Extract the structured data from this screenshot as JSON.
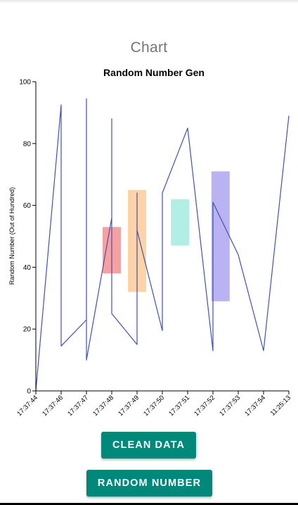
{
  "page": {
    "title": "Chart"
  },
  "buttons": {
    "clean_label": "CLEAN DATA",
    "random_label": "RANDOM NUMBER"
  },
  "chart_data": {
    "type": "line",
    "title": "Random Number Gen",
    "xlabel": "",
    "ylabel": "Random Number (Out of Hundred)",
    "ylim": [
      0,
      100
    ],
    "yticks": [
      0,
      20,
      40,
      60,
      80,
      100
    ],
    "categories": [
      "17:37:44",
      "17:37:46",
      "17:37:47",
      "17:37:48",
      "17:37:49",
      "17:37:50",
      "17:37:51",
      "17:37:52",
      "17:37:53",
      "17:37:54",
      "11:25:13"
    ],
    "line_color": "#3f51b5",
    "line_points": [
      {
        "x": 0,
        "y": 0
      },
      {
        "x": 1,
        "y": 92.5
      },
      {
        "x": 1,
        "y": 14.5
      },
      {
        "x": 2,
        "y": 23
      },
      {
        "x": 2,
        "y": 94.5
      },
      {
        "x": 2,
        "y": 10
      },
      {
        "x": 3,
        "y": 56
      },
      {
        "x": 3,
        "y": 88
      },
      {
        "x": 3,
        "y": 25
      },
      {
        "x": 4,
        "y": 15
      },
      {
        "x": 4,
        "y": 64
      },
      {
        "x": 4,
        "y": 52
      },
      {
        "x": 5,
        "y": 19.5
      },
      {
        "x": 5,
        "y": 64
      },
      {
        "x": 6,
        "y": 85
      },
      {
        "x": 7,
        "y": 13
      },
      {
        "x": 7,
        "y": 61
      },
      {
        "x": 8,
        "y": 44
      },
      {
        "x": 9,
        "y": 13
      },
      {
        "x": 10,
        "y": 89
      }
    ],
    "bars": [
      {
        "x": 3,
        "low": 38,
        "high": 53,
        "color": "#f8a0a0"
      },
      {
        "x": 4,
        "low": 32,
        "high": 65,
        "color": "#ffd3a5"
      },
      {
        "x": 5.7,
        "low": 47,
        "high": 62,
        "color": "#b3eee4"
      },
      {
        "x": 7.3,
        "low": 29,
        "high": 71,
        "color": "#bab3f3"
      }
    ],
    "grid": false,
    "legend": "none"
  }
}
